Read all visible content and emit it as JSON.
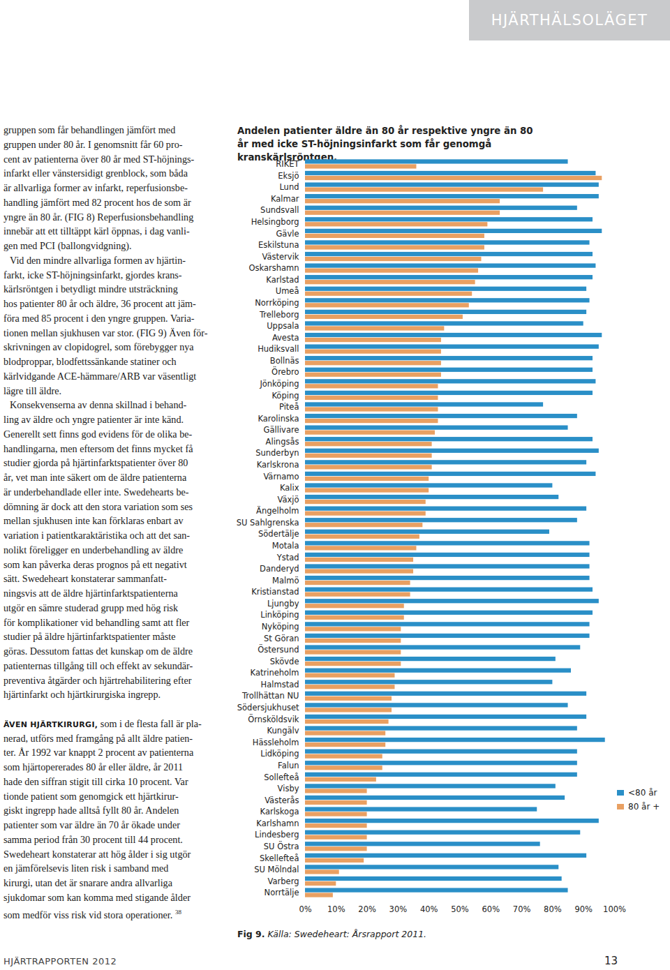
{
  "section": "HJÄRTHÄLSOLÄGET",
  "body": {
    "paragraphs": [
      {
        "lines": [
          "gruppen som får behandlingen jämfört med",
          "gruppen under 80 år. I genomsnitt får 60 pro-",
          "cent av patienterna över 80 år med ST-höjnings-",
          "infarkt eller vänstersidigt grenblock, som båda",
          "är allvarliga former av infarkt, reperfusionsbe-",
          "handling jämfört med 82 procent hos de som är",
          "yngre än 80 år. (FIG 8) Reperfusionsbehandling",
          "innebär att ett tilltäppt kärl öppnas, i dag vanli-",
          "gen med PCI (ballongvidgning)."
        ]
      },
      {
        "lines": [
          "Vid den mindre allvarliga formen av hjärtin-",
          "farkt, icke ST-höjningsinfarkt, gjordes krans-",
          "kärlsröntgen i betydligt mindre utsträckning",
          "hos patienter 80 år och äldre, 36 procent att jäm-",
          "föra med 85 procent i den yngre gruppen. Varia-",
          "tionen mellan sjukhusen var stor. (FIG 9) Även för-",
          "skrivningen av clopidogrel, som förebygger nya",
          "blodproppar, blodfettssänkande statiner och",
          "kärlvidgande ACE-hämmare/ARB var väsentligt",
          "lägre till äldre."
        ]
      },
      {
        "lines": [
          "Konsekvenserna av denna skillnad i behand-",
          "ling av äldre och yngre patienter är inte känd.",
          "Generellt sett finns god evidens för de olika be-",
          "handlingarna, men eftersom det finns mycket få",
          "studier gjorda på hjärtinfarktspatienter över 80",
          "år, vet man inte säkert om de äldre patienterna",
          "är underbehandlade eller inte. Swedehearts be-",
          "dömning är dock att den stora variation som ses",
          "mellan sjukhusen inte kan förklaras enbart av",
          "variation i patientkaraktäristika och att det san-",
          "nolikt föreligger en underbehandling av äldre",
          "som kan påverka deras prognos på ett negativt",
          "sätt. Swedeheart konstaterar sammanfatt-",
          "ningsvis att de äldre hjärtinfarktspatienterna",
          "utgör en sämre studerad grupp med hög risk",
          "för komplikationer vid behandling samt att fler",
          "studier på äldre hjärtinfarktspatienter måste",
          "göras. Dessutom fattas det kunskap om de äldre",
          "patienternas tillgång till och effekt av sekundär-",
          "preventiva åtgärder och hjärtrehabilitering efter",
          "hjärtinfarkt och hjärtkirurgiska ingrepp."
        ]
      },
      {
        "lead": "ÄVEN HJÄRTKIRURGI,",
        "lines": [
          "som i de flesta fall är pla-",
          "nerad, utförs med framgång på allt äldre patien-",
          "ter. År 1992 var knappt 2 procent av patienterna",
          "som hjärtopererades 80 år eller äldre, år 2011",
          "hade den siffran stigit till cirka 10 procent. Var",
          "tionde patient som genomgick ett hjärtkirur-",
          "giskt ingrepp hade alltså fyllt 80 år. Andelen",
          "patienter som var äldre än 70 år ökade under",
          "samma period från 30 procent till 44 procent.",
          "Swedeheart konstaterar att hög ålder i sig utgör",
          "en jämförelsevis liten risk i samband med",
          "kirurgi, utan det är snarare andra allvarliga",
          "sjukdomar som kan komma med stigande ålder",
          "som medför viss risk vid stora operationer."
        ],
        "footnote": "38"
      }
    ]
  },
  "chart_data": {
    "type": "bar",
    "orientation": "horizontal",
    "title": "Andelen patienter äldre än 80 år respektive yngre än 80 år med icke ST-höjningsinfarkt som får genomgå kranskärlsröntgen.",
    "categories": [
      "RIKET",
      "Eksjö",
      "Lund",
      "Kalmar",
      "Sundsvall",
      "Helsingborg",
      "Gävle",
      "Eskilstuna",
      "Västervik",
      "Oskarshamn",
      "Karlstad",
      "Umeå",
      "Norrköping",
      "Trelleborg",
      "Uppsala",
      "Avesta",
      "Hudiksvall",
      "Bollnäs",
      "Örebro",
      "Jönköping",
      "Köping",
      "Piteå",
      "Karolinska",
      "Gällivare",
      "Alingsås",
      "Sunderbyn",
      "Karlskrona",
      "Värnamo",
      "Kalix",
      "Växjö",
      "Ängelholm",
      "SU Sahlgrenska",
      "Södertälje",
      "Motala",
      "Ystad",
      "Danderyd",
      "Malmö",
      "Kristianstad",
      "Ljungby",
      "Linköping",
      "Nyköping",
      "St Göran",
      "Östersund",
      "Skövde",
      "Katrineholm",
      "Halmstad",
      "Trollhättan NU",
      "Södersjukhuset",
      "Örnsköldsvik",
      "Kungälv",
      "Hässleholm",
      "Lidköping",
      "Falun",
      "Sollefteå",
      "Visby",
      "Västerås",
      "Karlskoga",
      "Karlshamn",
      "Lindesberg",
      "SU Östra",
      "Skellefteå",
      "SU Mölndal",
      "Varberg",
      "Norrtälje"
    ],
    "series": [
      {
        "name": "<80 år",
        "color": "#2a8fc7",
        "values": [
          85,
          94,
          95,
          95,
          88,
          93,
          96,
          92,
          93,
          94,
          93,
          91,
          92,
          91,
          90,
          96,
          95,
          93,
          93,
          94,
          93,
          77,
          88,
          85,
          93,
          95,
          91,
          94,
          80,
          82,
          91,
          88,
          79,
          92,
          92,
          92,
          92,
          93,
          95,
          93,
          92,
          92,
          89,
          81,
          86,
          80,
          91,
          85,
          91,
          88,
          97,
          88,
          88,
          88,
          81,
          84,
          75,
          95,
          89,
          76,
          91,
          82,
          83,
          85
        ]
      },
      {
        "name": "80 år +",
        "color": "#e9a062",
        "values": [
          36,
          96,
          77,
          63,
          63,
          59,
          58,
          58,
          57,
          56,
          55,
          54,
          53,
          51,
          45,
          44,
          44,
          44,
          44,
          43,
          43,
          43,
          43,
          42,
          41,
          41,
          41,
          40,
          40,
          39,
          39,
          38,
          37,
          36,
          35,
          35,
          34,
          34,
          32,
          32,
          31,
          31,
          31,
          31,
          29,
          29,
          28,
          28,
          27,
          26,
          26,
          25,
          25,
          23,
          20,
          20,
          20,
          20,
          20,
          20,
          19,
          11,
          10,
          9
        ]
      }
    ],
    "xlim": [
      0,
      100
    ],
    "xticks": [
      {
        "value": 0,
        "label": "0%"
      },
      {
        "value": 10,
        "label": "10%"
      },
      {
        "value": 20,
        "label": "20%"
      },
      {
        "value": 30,
        "label": "30%"
      },
      {
        "value": 40,
        "label": "40%"
      },
      {
        "value": 50,
        "label": "50%"
      },
      {
        "value": 60,
        "label": "60%"
      },
      {
        "value": 70,
        "label": "70%"
      },
      {
        "value": 80,
        "label": "80%"
      },
      {
        "value": 90,
        "label": "90%"
      },
      {
        "value": 100,
        "label": "100%"
      }
    ],
    "grid": false,
    "legend": "right",
    "caption": {
      "label": "Fig 9.",
      "text": "Källa: Swedeheart: Årsrapport 2011."
    }
  },
  "footer": {
    "publication": "HJÄRTRAPPORTEN 2012",
    "page": "13"
  }
}
